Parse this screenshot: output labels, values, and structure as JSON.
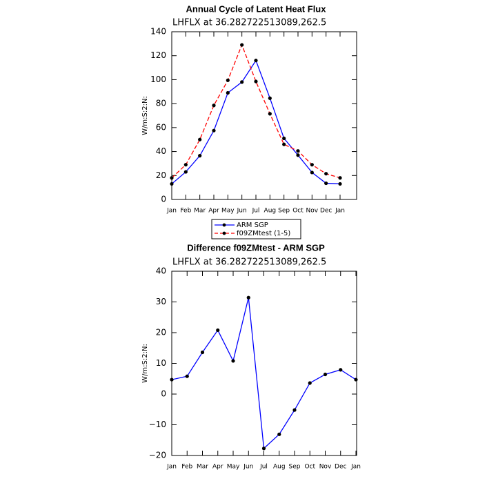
{
  "chart_data": [
    {
      "type": "line",
      "title": "Annual Cycle of Latent Heat Flux",
      "subtitle": "LHFLX at 36.282722513089,262.5",
      "ylabel": "W/m:S:2:N:",
      "categories": [
        "Jan",
        "Feb",
        "Mar",
        "Apr",
        "May",
        "Jun",
        "Jul",
        "Aug",
        "Sep",
        "Oct",
        "Nov",
        "Dec",
        "Jan"
      ],
      "series": [
        {
          "name": "ARM SGP",
          "color": "#0000ff",
          "line_style": "solid",
          "values": [
            13,
            23,
            36.5,
            57.5,
            89,
            98,
            116,
            84.5,
            51,
            37,
            22.5,
            13.5,
            13
          ]
        },
        {
          "name": "f09ZMtest (1-5)",
          "color": "#ff0000",
          "line_style": "dashed",
          "values": [
            18,
            29,
            50,
            78.5,
            99.5,
            129,
            98.5,
            71.5,
            46,
            40.5,
            29,
            21.5,
            18
          ]
        }
      ],
      "ylim": [
        0,
        140
      ],
      "yticks": [
        0,
        20,
        40,
        60,
        80,
        100,
        120,
        140
      ],
      "legend": "bottom"
    },
    {
      "type": "line",
      "title": "Difference f09ZMtest - ARM SGP",
      "subtitle": "LHFLX at 36.282722513089,262.5",
      "ylabel": "W/m:S:2:N:",
      "categories": [
        "Jan",
        "Feb",
        "Mar",
        "Apr",
        "May",
        "Jun",
        "Jul",
        "Aug",
        "Sep",
        "Oct",
        "Nov",
        "Dec",
        "Jan"
      ],
      "color": "#0000ff",
      "values": [
        4.7,
        5.8,
        13.6,
        20.8,
        10.8,
        31.4,
        -17.7,
        -13.1,
        -5.2,
        3.6,
        6.4,
        7.9,
        4.7
      ],
      "ylim": [
        -20,
        40
      ],
      "yticks": [
        {
          "value": -20,
          "label": "−20"
        },
        {
          "value": -10,
          "label": "−10"
        },
        0,
        10,
        20,
        30,
        40
      ]
    }
  ]
}
